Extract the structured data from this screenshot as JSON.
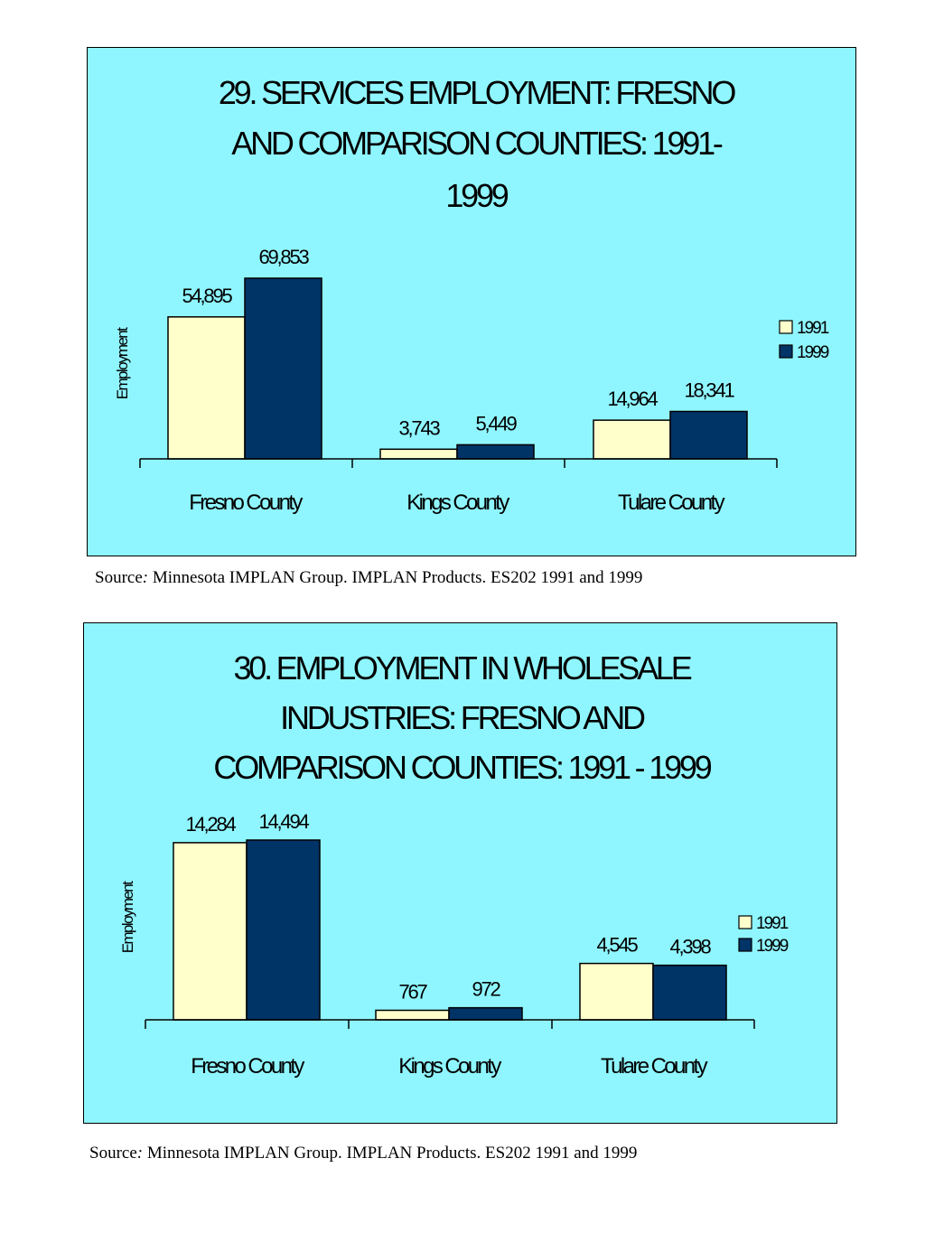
{
  "chart_data": [
    {
      "type": "bar",
      "title": "29. SERVICES EMPLOYMENT: FRESNO AND COMPARISON COUNTIES: 1991-1999",
      "title_lines": [
        "29. SERVICES EMPLOYMENT: FRESNO",
        "AND COMPARISON COUNTIES: 1991-",
        "1999"
      ],
      "ylabel": "Employment",
      "xlabel": "",
      "categories": [
        "Fresno County",
        "Kings County",
        "Tulare County"
      ],
      "series": [
        {
          "name": "1991",
          "values": [
            54895,
            3743,
            14964
          ],
          "labels": [
            "54,895",
            "3,743",
            "14,964"
          ],
          "color": "#ffffcc"
        },
        {
          "name": "1999",
          "values": [
            69853,
            5449,
            18341
          ],
          "labels": [
            "69,853",
            "5,449",
            "18,341"
          ],
          "color": "#003366"
        }
      ],
      "ylim": [
        0,
        69853
      ],
      "grid": false,
      "legend": "right",
      "background": "#8ff6ff"
    },
    {
      "type": "bar",
      "title": "30. EMPLOYMENT IN WHOLESALE INDUSTRIES: FRESNO AND COMPARISON COUNTIES: 1991 - 1999",
      "title_lines": [
        "30. EMPLOYMENT IN WHOLESALE",
        "INDUSTRIES: FRESNO AND",
        "COMPARISON COUNTIES: 1991 - 1999"
      ],
      "ylabel": "Employment",
      "xlabel": "",
      "categories": [
        "Fresno County",
        "Kings County",
        "Tulare County"
      ],
      "series": [
        {
          "name": "1991",
          "values": [
            14284,
            767,
            4545
          ],
          "labels": [
            "14,284",
            "767",
            "4,545"
          ],
          "color": "#ffffcc"
        },
        {
          "name": "1999",
          "values": [
            14494,
            972,
            4398
          ],
          "labels": [
            "14,494",
            "972",
            "4,398"
          ],
          "color": "#003366"
        }
      ],
      "ylim": [
        0,
        14494
      ],
      "grid": false,
      "legend": "right",
      "background": "#8ff6ff"
    }
  ],
  "sources": [
    {
      "label": "Source",
      "separator": ":",
      "text": " Minnesota IMPLAN Group. IMPLAN Products. ES202 1991 and 1999"
    },
    {
      "label": "Source",
      "separator": ":",
      "text": " Minnesota IMPLAN Group. IMPLAN Products. ES202 1991 and 1999"
    }
  ]
}
